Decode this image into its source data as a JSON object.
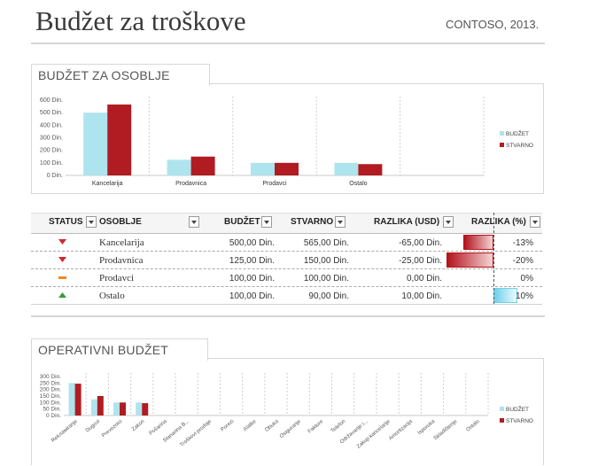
{
  "header": {
    "title": "Budžet za troškove",
    "company": "CONTOSO, 2013."
  },
  "staff_section": {
    "title": "BUDŽET ZA OSOBLJE"
  },
  "operating_section": {
    "title": "OPERATIVNI BUDŽET"
  },
  "colors": {
    "budget": "#aee4ee",
    "actual": "#b11c22",
    "neg_bar": "#b3121c",
    "pos_bar": "#6fd0ea"
  },
  "table": {
    "headers": [
      "STATUS",
      "OSOBLJE",
      "BUDŽET",
      "STVARNO",
      "RAZLIKA (USD)",
      "RAZLIKA (%)"
    ],
    "rows": [
      {
        "status": "down",
        "name": "Kancelarija",
        "budget": "500,00 Din.",
        "actual": "565,00 Din.",
        "diff": "-65,00 Din.",
        "pct": "-13%",
        "pct_value": -13
      },
      {
        "status": "down",
        "name": "Prodavnica",
        "budget": "125,00 Din.",
        "actual": "150,00 Din.",
        "diff": "-25,00 Din.",
        "pct": "-20%",
        "pct_value": -20
      },
      {
        "status": "flat",
        "name": "Prodavci",
        "budget": "100,00 Din.",
        "actual": "100,00 Din.",
        "diff": "0,00 Din.",
        "pct": "0%",
        "pct_value": 0
      },
      {
        "status": "up",
        "name": "Ostalo",
        "budget": "100,00 Din.",
        "actual": "90,00 Din.",
        "diff": "10,00 Din.",
        "pct": "10%",
        "pct_value": 10
      }
    ]
  },
  "chart_data": [
    {
      "type": "bar",
      "categories": [
        "Kancelarija",
        "Prodavnica",
        "Prodavci",
        "Ostalo",
        ""
      ],
      "series": [
        {
          "name": "BUDŽET",
          "values": [
            500,
            125,
            100,
            100,
            null
          ]
        },
        {
          "name": "STVARNO",
          "values": [
            565,
            150,
            100,
            90,
            null
          ]
        }
      ],
      "yticks": [
        "0 Din.",
        "100 Din.",
        "200 Din.",
        "300 Din.",
        "400 Din.",
        "500 Din.",
        "600 Din."
      ],
      "ylim": [
        0,
        600
      ],
      "legend": "right"
    },
    {
      "type": "bar",
      "categories": [
        "Rekламiranje",
        "Dugovi",
        "Prevoznici",
        "Zakon",
        "Pošarina",
        "Stanarina B...",
        "Troškovi prodaje",
        "Porezi",
        "Alatke",
        "Obuka",
        "Osiguranje",
        "Fakture",
        "Telefon",
        "Održavanje i...",
        "Zakup kancelarije",
        "Amortizacija",
        "Isporuka",
        "Skladištenje",
        "Ostalo"
      ],
      "series": [
        {
          "name": "BUDŽET",
          "values": [
            250,
            125,
            100,
            100,
            0,
            0,
            0,
            0,
            0,
            0,
            0,
            0,
            0,
            0,
            0,
            0,
            0,
            0,
            0
          ]
        },
        {
          "name": "STVARNO",
          "values": [
            245,
            150,
            100,
            95,
            0,
            0,
            0,
            0,
            0,
            0,
            0,
            0,
            0,
            0,
            0,
            0,
            0,
            0,
            0
          ]
        }
      ],
      "yticks": [
        "0 Din.",
        "50 Din.",
        "100 Din.",
        "150 Din.",
        "200 Din.",
        "250 Din.",
        "300 Din."
      ],
      "ylim": [
        0,
        300
      ],
      "legend": "right"
    }
  ]
}
